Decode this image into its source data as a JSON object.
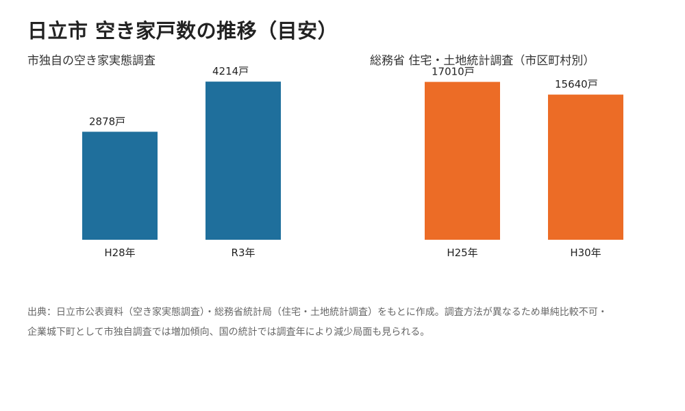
{
  "title": "日立市 空き家戸数の推移（目安）",
  "colors": {
    "local": "#1f6f9c",
    "national": "#ec6c26"
  },
  "chart_data": [
    {
      "type": "bar",
      "title": "市独自の空き家実態調査",
      "categories": [
        "H28年",
        "R3年"
      ],
      "values": [
        2878,
        4214
      ],
      "value_labels": [
        "2878戸",
        "4214戸"
      ],
      "ylim": [
        0,
        4600
      ],
      "grid": false
    },
    {
      "type": "bar",
      "title": "総務省 住宅・土地統計調査（市区町村別）",
      "categories": [
        "H25年",
        "H30年"
      ],
      "values": [
        17010,
        15640
      ],
      "value_labels": [
        "17010戸",
        "15640戸"
      ],
      "ylim": [
        0,
        18600
      ],
      "grid": false
    }
  ],
  "notes": [
    "出典：日立市公表資料（空き家実態調査）・総務省統計局（住宅・土地統計調査）をもとに作成。調査方法が異なるため単純比較不可・",
    "企業城下町として市独自調査では増加傾向、国の統計では調査年により減少局面も見られる。"
  ]
}
